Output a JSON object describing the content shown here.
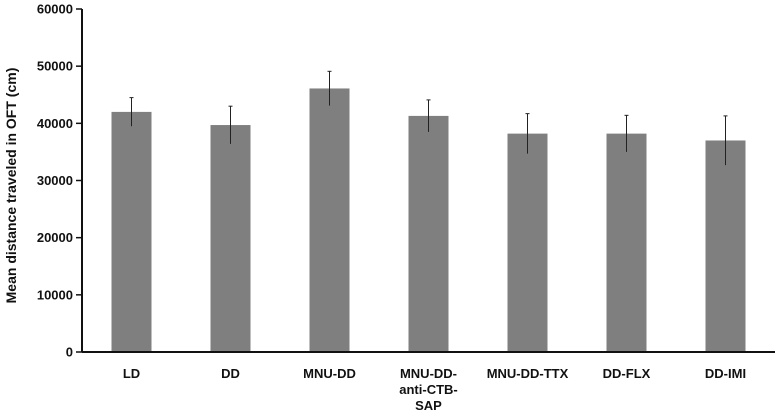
{
  "chart_data": {
    "type": "bar",
    "title": "",
    "xlabel": "",
    "ylabel": "Mean distance traveled in OFT (cm)",
    "ylim": [
      0,
      60000
    ],
    "yticks": [
      0,
      10000,
      20000,
      30000,
      40000,
      50000,
      60000
    ],
    "ytick_labels": [
      "0",
      "10000",
      "20000",
      "30000",
      "40000",
      "50000",
      "60000"
    ],
    "categories": [
      [
        "LD"
      ],
      [
        "DD"
      ],
      [
        "MNU-DD"
      ],
      [
        "MNU-DD-",
        "anti-CTB-",
        "SAP"
      ],
      [
        "MNU-DD-TTX"
      ],
      [
        "DD-FLX"
      ],
      [
        "DD-IMI"
      ]
    ],
    "values": [
      42000,
      39700,
      46100,
      41300,
      38200,
      38200,
      37000
    ],
    "errors": [
      2500,
      3300,
      3000,
      2800,
      3500,
      3200,
      4300
    ],
    "grid": false,
    "legend": "none",
    "colors": {
      "bar": "#7f7f7f",
      "axis": "#111111",
      "error": "#222222"
    }
  }
}
